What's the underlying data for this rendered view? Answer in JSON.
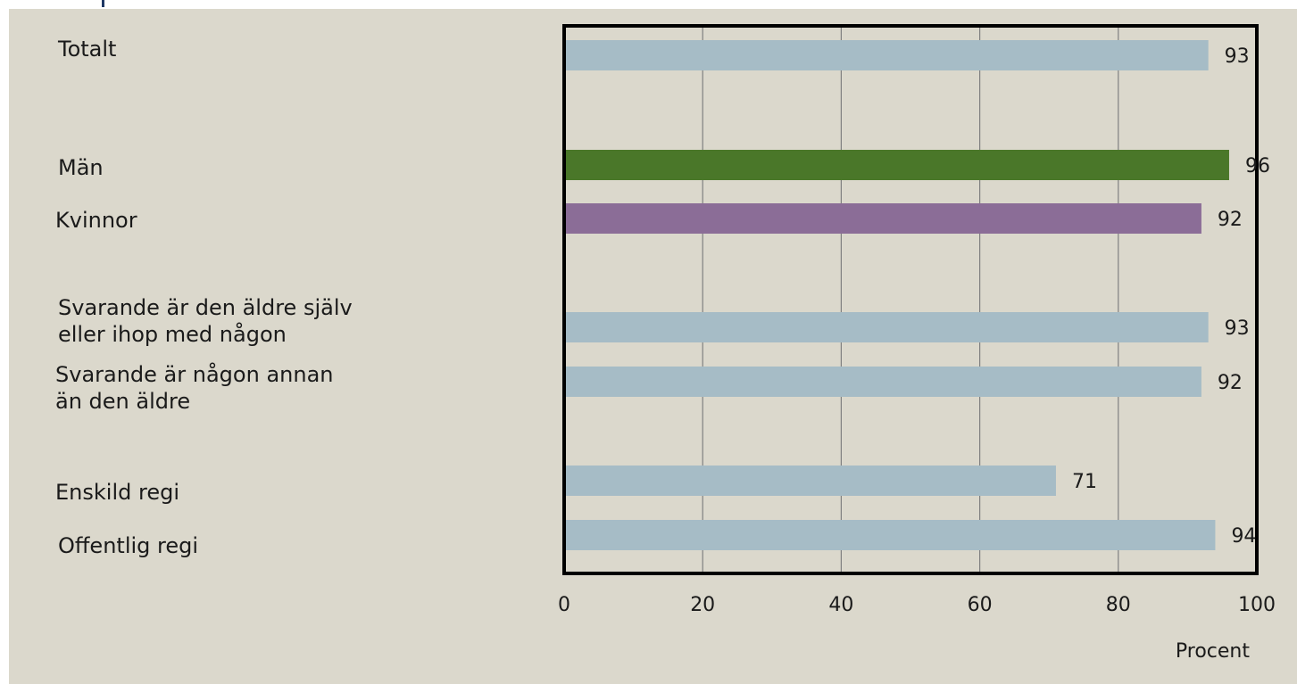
{
  "chart_data": {
    "type": "bar",
    "orientation": "horizontal",
    "categories": [
      "Totalt",
      "Män",
      "Kvinnor",
      "Svarande är den äldre själv\neller ihop med någon",
      "Svarande är någon annan\nän den äldre",
      "Enskild regi",
      "Offentlig regi"
    ],
    "values": [
      93,
      96,
      92,
      93,
      92,
      71,
      94
    ],
    "bar_colors": [
      "#a6bcc6",
      "#4a7729",
      "#8b6d97",
      "#a6bcc6",
      "#a6bcc6",
      "#a6bcc6",
      "#a6bcc6"
    ],
    "xlabel": "Procent",
    "xlim": [
      0,
      100
    ],
    "xticks": [
      0,
      20,
      40,
      60,
      80,
      100
    ],
    "grid": true
  },
  "colors": {
    "background": "#dbd8cc",
    "plot_border": "#000000",
    "grid": "#808080"
  }
}
